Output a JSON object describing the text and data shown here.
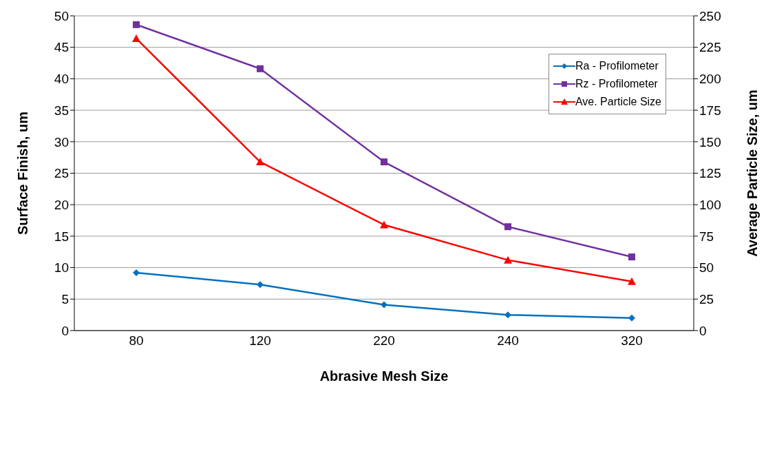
{
  "chart_data": {
    "type": "line",
    "xlabel": "Abrasive Mesh Size",
    "ylabel": "Surface Finish, um",
    "y2label": "Average Particle Size, um",
    "categories": [
      "80",
      "120",
      "220",
      "240",
      "320"
    ],
    "series": [
      {
        "name": "Ra - Profilometer",
        "color": "#0070c0",
        "marker": "diamond",
        "values": [
          9.2,
          7.3,
          4.1,
          2.5,
          2.0
        ]
      },
      {
        "name": "Rz - Profilometer",
        "color": "#7030a0",
        "marker": "square",
        "values": [
          48.6,
          41.6,
          26.8,
          16.5,
          11.7
        ]
      },
      {
        "name": "Ave. Particle Size",
        "color": "#ff0000",
        "marker": "triangle",
        "axis": "y2",
        "values": [
          232,
          134,
          84,
          56,
          39
        ]
      }
    ],
    "ylim": [
      0,
      50
    ],
    "yticks": [
      0,
      5,
      10,
      15,
      20,
      25,
      30,
      35,
      40,
      45,
      50
    ],
    "y2lim": [
      0,
      250
    ],
    "y2ticks": [
      0,
      25,
      50,
      75,
      100,
      125,
      150,
      175,
      200,
      225,
      250
    ],
    "grid": "y",
    "legend": "top right"
  }
}
